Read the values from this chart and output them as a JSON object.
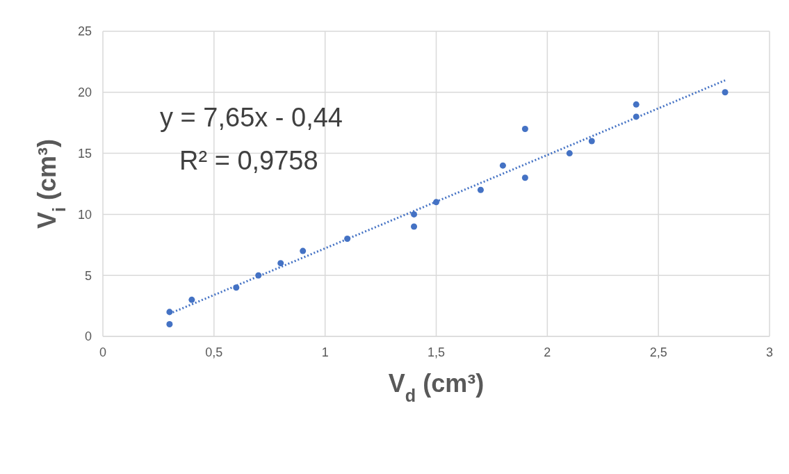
{
  "chart_data": {
    "type": "scatter",
    "xlabel": "V$_{d}$ (cm³)",
    "ylabel": "V$_{i}$ (cm³)",
    "annotations": [
      "y = 7,65x - 0,44",
      "R² = 0,9758"
    ],
    "series": [
      {
        "color": "#4472c4",
        "marker": "circle",
        "x": [
          0.3,
          0.3,
          0.4,
          0.6,
          0.7,
          0.8,
          0.9,
          1.1,
          1.4,
          1.4,
          1.5,
          1.7,
          1.8,
          1.9,
          1.9,
          2.1,
          2.2,
          2.4,
          2.4,
          2.8
        ],
        "values": [
          2,
          1,
          3,
          4,
          5,
          6,
          7,
          8,
          10,
          9,
          11,
          12,
          14,
          17,
          13,
          15,
          16,
          19,
          18,
          20
        ]
      },
      {
        "type": "line",
        "color": "#4472c4",
        "line_style": "dotted",
        "marker": "none",
        "x": [
          0.3,
          2.8
        ],
        "values": [
          1.86,
          20.98
        ]
      }
    ],
    "xlim": [
      0,
      3
    ],
    "xticks": [
      0,
      {
        "value": 0.5,
        "label": "0,5"
      },
      1,
      {
        "value": 1.5,
        "label": "1,5"
      },
      2,
      {
        "value": 2.5,
        "label": "2,5"
      },
      3
    ],
    "ylim": [
      0,
      25
    ],
    "yticks": [
      0,
      5,
      10,
      15,
      20,
      25
    ],
    "grid": true,
    "legend": false
  }
}
